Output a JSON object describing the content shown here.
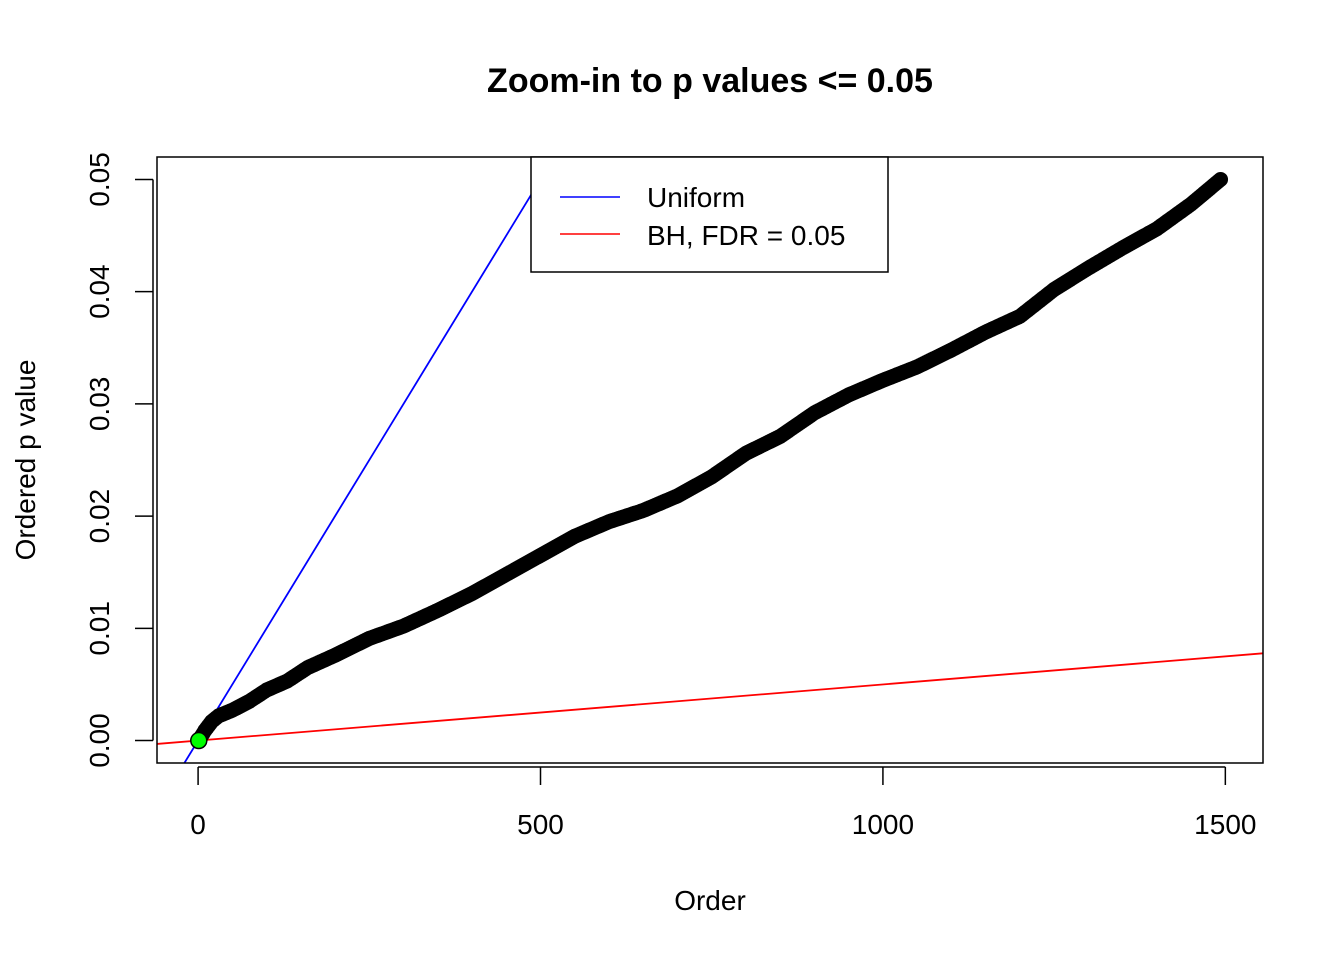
{
  "chart_data": {
    "type": "scatter",
    "title": "Zoom-in to p values <= 0.05",
    "xlabel": "Order",
    "ylabel": "Ordered p value",
    "xlim": [
      -60,
      1555
    ],
    "ylim": [
      -0.002,
      0.052
    ],
    "x_ticks": [
      0,
      500,
      1000,
      1500
    ],
    "y_ticks": [
      0.0,
      0.01,
      0.02,
      0.03,
      0.04,
      0.05
    ],
    "x_tick_labels": [
      "0",
      "500",
      "1000",
      "1500"
    ],
    "y_tick_labels": [
      "0.00",
      "0.01",
      "0.02",
      "0.03",
      "0.04",
      "0.05"
    ],
    "grid": false,
    "legend_position": "top-center",
    "series": [
      {
        "kind": "points",
        "color": "#000000",
        "x": [
          1,
          5,
          10,
          15,
          20,
          30,
          50,
          75,
          100,
          130,
          160,
          200,
          250,
          300,
          350,
          400,
          450,
          500,
          550,
          600,
          650,
          700,
          750,
          800,
          850,
          900,
          950,
          1000,
          1050,
          1100,
          1150,
          1200,
          1250,
          1300,
          1350,
          1400,
          1450,
          1493
        ],
        "y": [
          0.0,
          0.0004,
          0.0009,
          0.0013,
          0.0017,
          0.0022,
          0.0027,
          0.0035,
          0.0045,
          0.0053,
          0.0065,
          0.0076,
          0.0091,
          0.0102,
          0.0116,
          0.0131,
          0.0148,
          0.0165,
          0.0182,
          0.0195,
          0.0205,
          0.0218,
          0.0235,
          0.0256,
          0.0271,
          0.0292,
          0.0308,
          0.0321,
          0.0333,
          0.0348,
          0.0364,
          0.0378,
          0.0402,
          0.0421,
          0.0439,
          0.0456,
          0.0478,
          0.05
        ]
      },
      {
        "name": "Uniform",
        "kind": "line",
        "color": "#0000FF",
        "slope": 0.0001,
        "intercept": 0
      },
      {
        "name": "BH, FDR = 0.05",
        "kind": "line",
        "color": "#FF0000",
        "slope": 5e-06,
        "intercept": 0
      },
      {
        "kind": "highlight-point",
        "color": "#00FF00",
        "x": [
          1
        ],
        "y": [
          0.0
        ]
      }
    ],
    "legend": [
      {
        "label": "Uniform",
        "color": "#0000FF"
      },
      {
        "label": "BH, FDR = 0.05",
        "color": "#FF0000"
      }
    ]
  }
}
